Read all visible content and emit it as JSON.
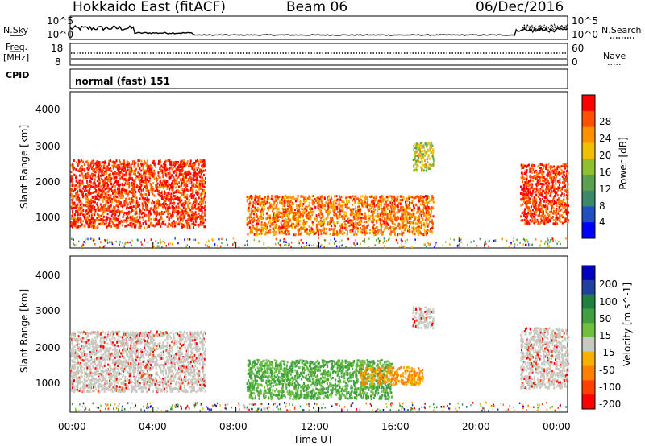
{
  "header": {
    "station": "Hokkaido East (fitACF)",
    "beam": "Beam 06",
    "date": "06/Dec/2016"
  },
  "top_panels": {
    "nsky_label": "N.Sky",
    "nsearch_label": "N.Search",
    "noise_ticks_left": [
      "10^5",
      "10^0"
    ],
    "noise_ticks_right": [
      "10^5",
      "10^0"
    ],
    "freq_label": [
      "Freq.",
      "[MHz]"
    ],
    "freq_ticks": [
      "18",
      "8"
    ],
    "nave_label": "Nave",
    "nave_ticks": [
      "60",
      "0"
    ],
    "cpid_label": "CPID",
    "cpid_value": "normal (fast) 151"
  },
  "colors": {
    "power_scale": [
      "#0000ff",
      "#2050c0",
      "#3a8a6a",
      "#5aa050",
      "#90c030",
      "#f0c000",
      "#ff9000",
      "#ff5000",
      "#ff0000"
    ],
    "velocity_scale": [
      "#0000c0",
      "#2040a0",
      "#208040",
      "#40a040",
      "#70c040",
      "#c8c8c0",
      "#f8b000",
      "#ff8000",
      "#ff4000",
      "#ff0000"
    ]
  },
  "chart_data": [
    {
      "type": "heatmap",
      "name": "power",
      "ylabel": "Slant Range [km]",
      "yticks": [
        "1000",
        "2000",
        "3000",
        "4000"
      ],
      "ylim": [
        200,
        4600
      ],
      "colorbar_label": "Power [dB]",
      "colorbar_ticks": [
        "4",
        "8",
        "12",
        "16",
        "20",
        "24",
        "28"
      ],
      "colorbar_range": [
        0,
        30
      ],
      "regions": [
        {
          "t": [
            0.0,
            6.5
          ],
          "range": [
            800,
            2700
          ],
          "value": 28
        },
        {
          "t": [
            8.5,
            17.5
          ],
          "range": [
            600,
            1700
          ],
          "value": 24
        },
        {
          "t": [
            16.5,
            17.5
          ],
          "range": [
            2400,
            3200
          ],
          "value": 16
        },
        {
          "t": [
            21.7,
            24.0
          ],
          "range": [
            900,
            2600
          ],
          "value": 28
        }
      ]
    },
    {
      "type": "heatmap",
      "name": "velocity",
      "ylabel": "Slant Range [km]",
      "yticks": [
        "1000",
        "2000",
        "3000",
        "4000"
      ],
      "ylim": [
        200,
        4600
      ],
      "colorbar_label": "Velocity [m s^-1]",
      "colorbar_ticks": [
        "200",
        "100",
        "50",
        "15",
        "-15",
        "-50",
        "-100",
        "-200"
      ],
      "regions": [
        {
          "t": [
            0.0,
            6.5
          ],
          "range": [
            800,
            2500
          ],
          "value": 0
        },
        {
          "t": [
            8.5,
            15.5
          ],
          "range": [
            600,
            1700
          ],
          "value": 40
        },
        {
          "t": [
            14.0,
            17.0
          ],
          "range": [
            1000,
            1500
          ],
          "value": -40
        },
        {
          "t": [
            16.5,
            17.5
          ],
          "range": [
            2600,
            3200
          ],
          "value": 0
        },
        {
          "t": [
            21.7,
            24.0
          ],
          "range": [
            900,
            2600
          ],
          "value": 0
        }
      ]
    }
  ],
  "xaxis": {
    "label": "Time UT",
    "ticks": [
      "00:00",
      "04:00",
      "08:00",
      "12:00",
      "16:00",
      "20:00",
      "00:00"
    ]
  }
}
